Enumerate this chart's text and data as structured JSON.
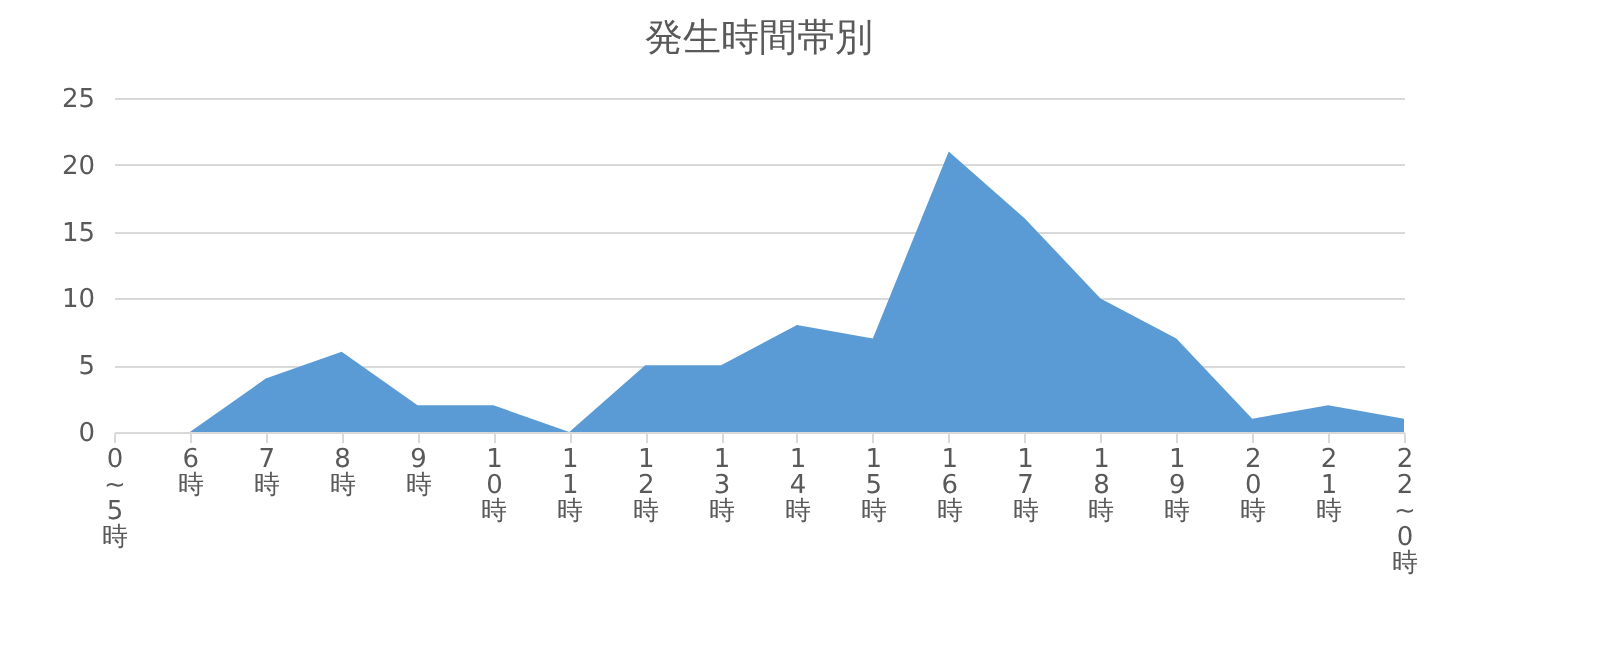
{
  "chart_data": {
    "type": "area",
    "title": "発生時間帯別",
    "categories": [
      "0~5時",
      "6時",
      "7時",
      "8時",
      "9時",
      "10時",
      "11時",
      "12時",
      "13時",
      "14時",
      "15時",
      "16時",
      "17時",
      "18時",
      "19時",
      "20時",
      "21時",
      "22~0時"
    ],
    "series": [
      {
        "color": "#5b9bd5",
        "values": [
          null,
          0,
          4,
          6,
          2,
          2,
          0,
          5,
          5,
          8,
          7,
          21,
          16,
          10,
          7,
          1,
          2,
          1
        ]
      }
    ],
    "ylim": [
      0,
      25
    ],
    "yticks": [
      0,
      5,
      10,
      15,
      20,
      25
    ],
    "grid": "y"
  }
}
